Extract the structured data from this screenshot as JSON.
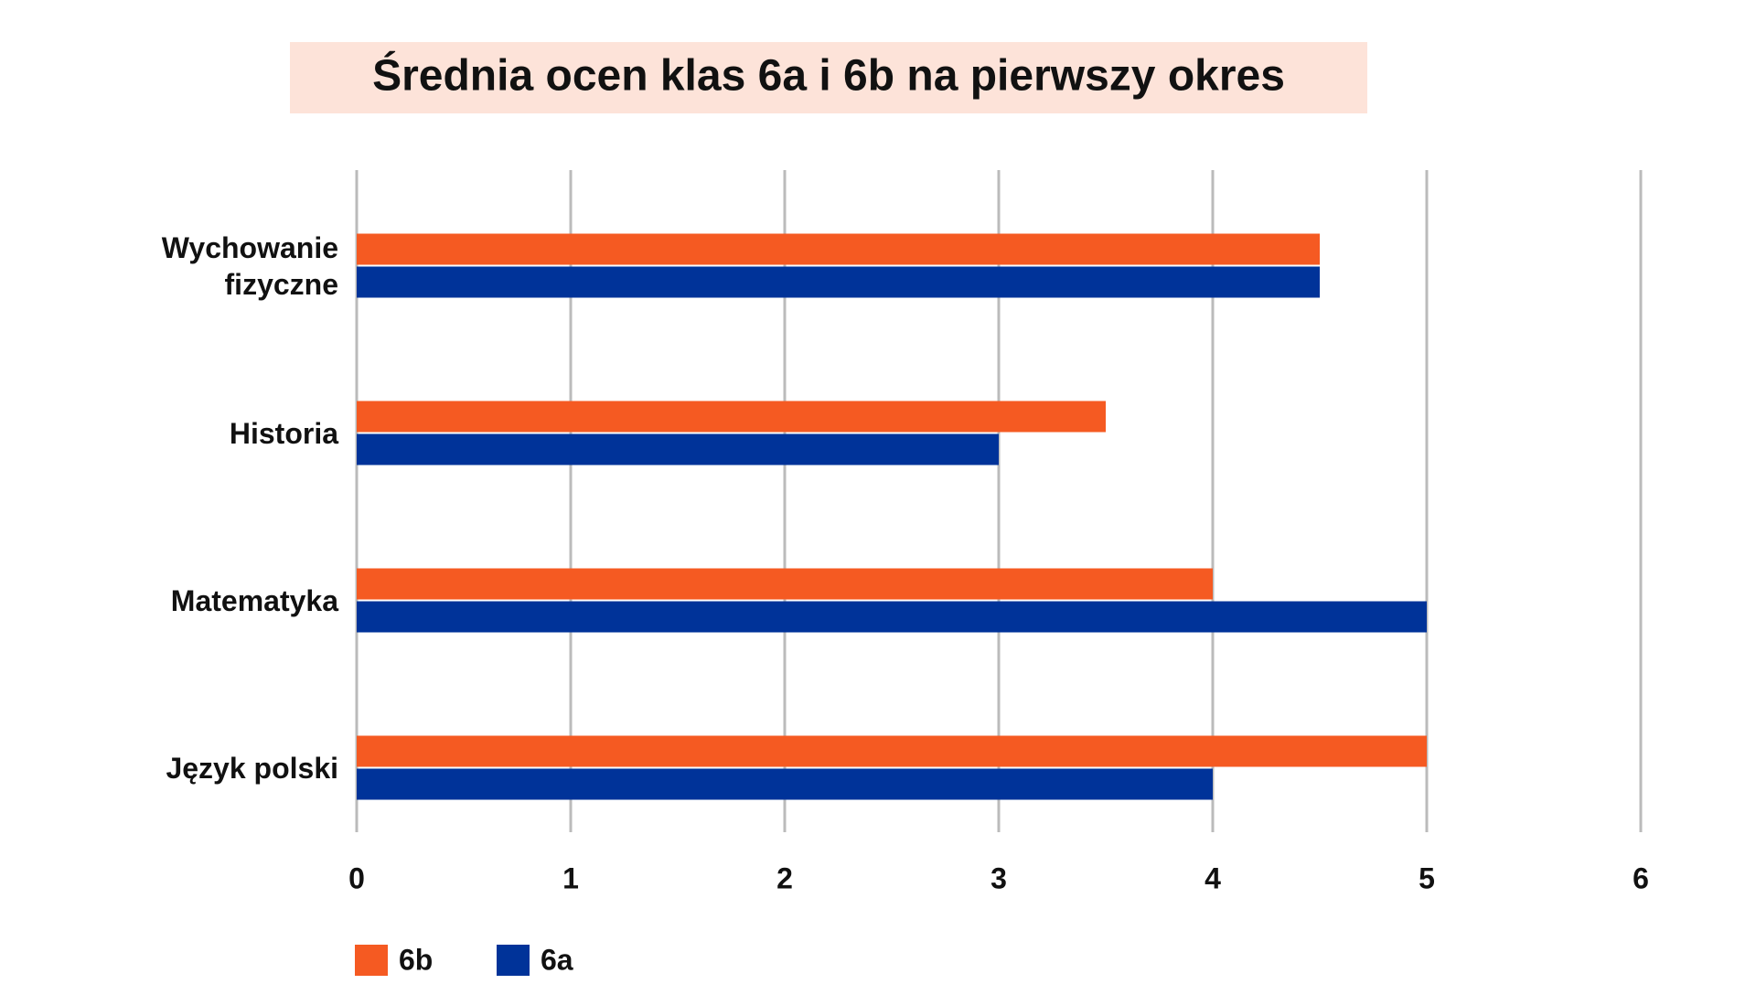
{
  "chart_data": {
    "type": "hbar",
    "title": "Średnia ocen klas 6a i 6b na pierwszy okres",
    "categories": [
      "Wychowanie fizyczne",
      "Historia",
      "Matematyka",
      "Język polski"
    ],
    "series": [
      {
        "name": "6b",
        "color": "#f55a22",
        "values": [
          4.5,
          3.5,
          4,
          5
        ]
      },
      {
        "name": "6a",
        "color": "#003399",
        "values": [
          4.5,
          3,
          5,
          4
        ]
      }
    ],
    "xlim": [
      0,
      6
    ],
    "xticks": [
      0,
      1,
      2,
      3,
      4,
      5,
      6
    ],
    "grid": true
  }
}
